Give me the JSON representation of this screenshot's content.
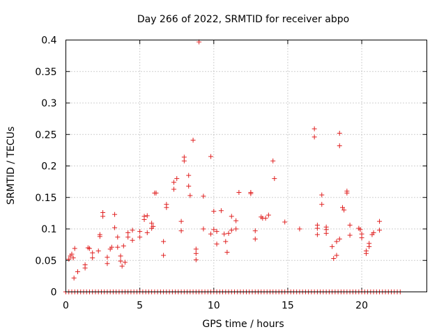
{
  "chart_data": {
    "type": "scatter",
    "title": "Day 266 of 2022, SRMTID for receiver abpo",
    "xlabel": "GPS time / hours",
    "ylabel": "SRMTID / TECUs",
    "xlim": [
      0,
      24.4
    ],
    "ylim": [
      0,
      0.4
    ],
    "xticks": [
      0,
      5,
      10,
      15,
      20
    ],
    "xtick_labels": [
      "0",
      "5",
      "10",
      "15",
      "20"
    ],
    "yticks": [
      0,
      0.05,
      0.1,
      0.15,
      0.2,
      0.25,
      0.3,
      0.35,
      0.4
    ],
    "ytick_labels": [
      "0",
      "0.05",
      "0.1",
      "0.15",
      "0.2",
      "0.25",
      "0.3",
      "0.35",
      "0.4"
    ],
    "grid": true,
    "marker": "+",
    "color": "#e02020",
    "zero_series": {
      "x_start": 0.0,
      "x_end": 22.7,
      "step": 0.2,
      "y": 0
    },
    "points": [
      [
        0.2,
        0.052
      ],
      [
        0.3,
        0.057
      ],
      [
        0.4,
        0.06
      ],
      [
        0.5,
        0.054
      ],
      [
        0.6,
        0.069
      ],
      [
        0.55,
        0.022
      ],
      [
        0.8,
        0.032
      ],
      [
        1.3,
        0.038
      ],
      [
        1.3,
        0.043
      ],
      [
        1.5,
        0.07
      ],
      [
        1.6,
        0.069
      ],
      [
        1.8,
        0.054
      ],
      [
        1.8,
        0.062
      ],
      [
        2.2,
        0.065
      ],
      [
        2.3,
        0.091
      ],
      [
        2.3,
        0.088
      ],
      [
        2.5,
        0.126
      ],
      [
        2.5,
        0.12
      ],
      [
        2.8,
        0.055
      ],
      [
        2.8,
        0.045
      ],
      [
        3.0,
        0.068
      ],
      [
        3.1,
        0.071
      ],
      [
        3.3,
        0.123
      ],
      [
        3.3,
        0.102
      ],
      [
        3.5,
        0.087
      ],
      [
        3.5,
        0.071
      ],
      [
        3.7,
        0.057
      ],
      [
        3.7,
        0.049
      ],
      [
        3.8,
        0.041
      ],
      [
        3.9,
        0.073
      ],
      [
        4.0,
        0.047
      ],
      [
        4.2,
        0.094
      ],
      [
        4.2,
        0.087
      ],
      [
        4.5,
        0.098
      ],
      [
        4.5,
        0.082
      ],
      [
        5.0,
        0.087
      ],
      [
        5.0,
        0.096
      ],
      [
        5.3,
        0.115
      ],
      [
        5.3,
        0.12
      ],
      [
        5.5,
        0.121
      ],
      [
        5.5,
        0.094
      ],
      [
        5.8,
        0.109
      ],
      [
        5.8,
        0.101
      ],
      [
        5.9,
        0.104
      ],
      [
        6.0,
        0.157
      ],
      [
        6.1,
        0.157
      ],
      [
        6.6,
        0.08
      ],
      [
        6.6,
        0.058
      ],
      [
        6.8,
        0.139
      ],
      [
        6.8,
        0.134
      ],
      [
        7.3,
        0.174
      ],
      [
        7.3,
        0.163
      ],
      [
        7.5,
        0.18
      ],
      [
        7.8,
        0.112
      ],
      [
        7.8,
        0.097
      ],
      [
        8.0,
        0.214
      ],
      [
        8.0,
        0.208
      ],
      [
        8.3,
        0.185
      ],
      [
        8.3,
        0.168
      ],
      [
        8.4,
        0.153
      ],
      [
        8.6,
        0.241
      ],
      [
        8.8,
        0.068
      ],
      [
        8.8,
        0.061
      ],
      [
        8.8,
        0.051
      ],
      [
        9.0,
        0.397
      ],
      [
        9.3,
        0.152
      ],
      [
        9.3,
        0.1
      ],
      [
        9.8,
        0.215
      ],
      [
        9.8,
        0.092
      ],
      [
        10.0,
        0.128
      ],
      [
        10.0,
        0.099
      ],
      [
        10.2,
        0.096
      ],
      [
        10.2,
        0.076
      ],
      [
        10.5,
        0.129
      ],
      [
        10.7,
        0.092
      ],
      [
        10.8,
        0.08
      ],
      [
        10.9,
        0.063
      ],
      [
        11.0,
        0.093
      ],
      [
        11.2,
        0.12
      ],
      [
        11.2,
        0.098
      ],
      [
        11.5,
        0.113
      ],
      [
        11.5,
        0.1
      ],
      [
        11.7,
        0.158
      ],
      [
        12.5,
        0.158
      ],
      [
        12.5,
        0.156
      ],
      [
        12.8,
        0.097
      ],
      [
        12.8,
        0.084
      ],
      [
        13.2,
        0.119
      ],
      [
        13.3,
        0.117
      ],
      [
        13.5,
        0.117
      ],
      [
        13.7,
        0.122
      ],
      [
        14.0,
        0.208
      ],
      [
        14.1,
        0.18
      ],
      [
        14.8,
        0.111
      ],
      [
        15.8,
        0.1
      ],
      [
        16.8,
        0.259
      ],
      [
        16.8,
        0.246
      ],
      [
        17.0,
        0.106
      ],
      [
        17.0,
        0.101
      ],
      [
        17.0,
        0.091
      ],
      [
        17.3,
        0.154
      ],
      [
        17.3,
        0.139
      ],
      [
        17.6,
        0.103
      ],
      [
        17.6,
        0.099
      ],
      [
        17.6,
        0.093
      ],
      [
        18.0,
        0.072
      ],
      [
        18.1,
        0.053
      ],
      [
        18.3,
        0.058
      ],
      [
        18.3,
        0.08
      ],
      [
        18.5,
        0.252
      ],
      [
        18.5,
        0.232
      ],
      [
        18.5,
        0.084
      ],
      [
        18.7,
        0.134
      ],
      [
        18.8,
        0.13
      ],
      [
        19.0,
        0.16
      ],
      [
        19.0,
        0.157
      ],
      [
        19.2,
        0.106
      ],
      [
        19.2,
        0.09
      ],
      [
        19.8,
        0.101
      ],
      [
        19.9,
        0.099
      ],
      [
        20.0,
        0.092
      ],
      [
        20.0,
        0.086
      ],
      [
        20.3,
        0.065
      ],
      [
        20.3,
        0.061
      ],
      [
        20.5,
        0.077
      ],
      [
        20.5,
        0.072
      ],
      [
        20.7,
        0.091
      ],
      [
        20.8,
        0.094
      ],
      [
        21.2,
        0.112
      ],
      [
        21.2,
        0.098
      ]
    ]
  }
}
